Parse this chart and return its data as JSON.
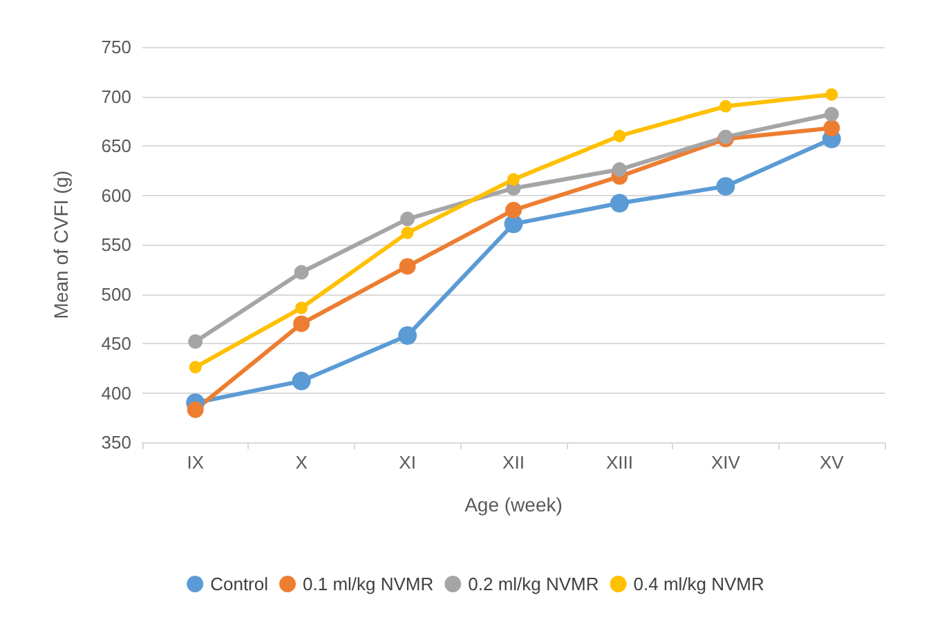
{
  "chart_data": {
    "type": "line",
    "xlabel": "Age (week)",
    "ylabel": "Mean of CVFI (g)",
    "categories": [
      "IX",
      "X",
      "XI",
      "XII",
      "XIII",
      "XIV",
      "XV"
    ],
    "series": [
      {
        "name": "Control",
        "color": "#5b9bd5",
        "values": [
          390,
          412,
          458,
          571,
          592,
          609,
          657
        ]
      },
      {
        "name": "0.1 ml/kg NVMR",
        "color": "#ed7d31",
        "values": [
          383,
          470,
          528,
          585,
          619,
          657,
          668
        ]
      },
      {
        "name": "0.2 ml/kg NVMR",
        "color": "#a5a5a5",
        "values": [
          452,
          522,
          576,
          607,
          626,
          659,
          682
        ]
      },
      {
        "name": "0.4 ml/kg NVMR",
        "color": "#ffc000",
        "values": [
          426,
          486,
          562,
          616,
          660,
          690,
          702
        ]
      }
    ],
    "ylim": [
      350,
      750
    ],
    "yticks": [
      350,
      400,
      450,
      500,
      550,
      600,
      650,
      700,
      750
    ],
    "grid": "y",
    "legend": "bottom",
    "marker": "circle",
    "line_style": "solid"
  }
}
